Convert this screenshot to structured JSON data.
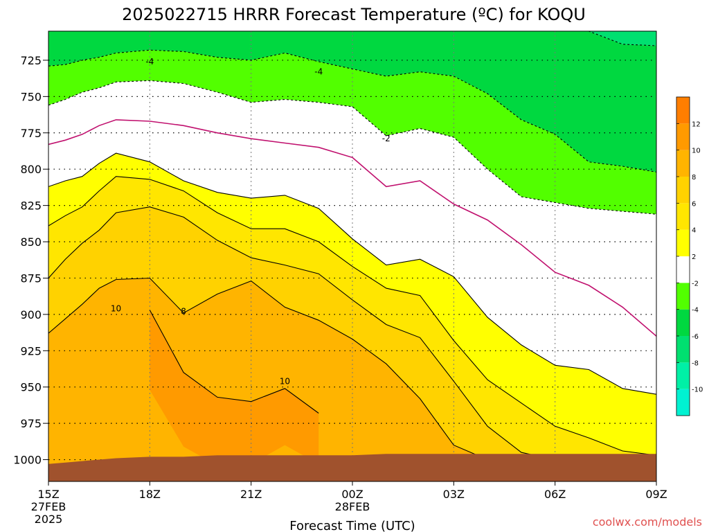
{
  "chart_data": {
    "type": "heatmap",
    "title": "2025022715 HRRR Forecast Temperature (ºC) for KOQU",
    "xlabel": "Forecast Time (UTC)",
    "ylabel": "",
    "y_axis": {
      "unit": "hPa",
      "range": [
        1015,
        705
      ],
      "inverted": true,
      "ticks": [
        "725",
        "750",
        "775",
        "800",
        "825",
        "850",
        "875",
        "900",
        "925",
        "950",
        "975",
        "1000"
      ]
    },
    "x_axis": {
      "range_hours": [
        0,
        18
      ],
      "ticks": [
        {
          "hour": 0,
          "lines": [
            "15Z",
            "27FEB",
            "2025"
          ]
        },
        {
          "hour": 3,
          "lines": [
            "18Z"
          ]
        },
        {
          "hour": 6,
          "lines": [
            "21Z"
          ]
        },
        {
          "hour": 9,
          "lines": [
            "00Z",
            "28FEB"
          ]
        },
        {
          "hour": 12,
          "lines": [
            "03Z"
          ]
        },
        {
          "hour": 15,
          "lines": [
            "06Z"
          ]
        },
        {
          "hour": 18,
          "lines": [
            "09Z"
          ]
        }
      ]
    },
    "grid": true,
    "colorbar": {
      "position": "right",
      "levels": [
        -12,
        -10,
        -8,
        -6,
        -4,
        -2,
        2,
        4,
        6,
        8,
        10,
        12,
        14
      ],
      "colors": [
        "#00f2d2",
        "#00f0a6",
        "#00e070",
        "#00d840",
        "#52ff00",
        "#ffffff",
        "#ffff00",
        "#ffe600",
        "#ffd200",
        "#ffb400",
        "#ff9a00",
        "#ff7e00"
      ],
      "tick_labels": [
        "-10",
        "-8",
        "-6",
        "-4",
        "-2",
        "2",
        "4",
        "6",
        "8",
        "10",
        "12"
      ]
    },
    "hours": [
      0,
      0.5,
      1,
      1.5,
      2,
      3,
      4,
      5,
      6,
      7,
      8,
      9,
      10,
      11,
      12,
      13,
      14,
      15,
      16,
      17,
      18
    ],
    "isotherms_hpa": [
      {
        "value": -6,
        "pressure": [
          null,
          null,
          null,
          null,
          null,
          null,
          null,
          null,
          null,
          null,
          null,
          null,
          null,
          null,
          null,
          null,
          null,
          705,
          705,
          714,
          715
        ]
      },
      {
        "value": -4,
        "pressure": [
          729,
          728,
          725,
          723,
          720,
          718,
          719,
          723,
          725,
          720,
          726,
          731,
          736,
          733,
          736,
          748,
          766,
          776,
          795,
          798,
          802
        ]
      },
      {
        "value": -2,
        "pressure": [
          756,
          752,
          747,
          744,
          740,
          739,
          741,
          747,
          754,
          752,
          754,
          757,
          777,
          772,
          778,
          800,
          819,
          823,
          827,
          829,
          831
        ]
      },
      {
        "value": 0,
        "pressure": [
          783,
          780,
          776,
          770,
          766,
          767,
          770,
          775,
          779,
          782,
          785,
          792,
          812,
          808,
          824,
          835,
          852,
          871,
          880,
          895,
          915
        ]
      },
      {
        "value": 2,
        "pressure": [
          812,
          808,
          805,
          796,
          789,
          795,
          808,
          816,
          820,
          818,
          827,
          848,
          866,
          862,
          874,
          902,
          921,
          935,
          938,
          951,
          955
        ]
      },
      {
        "value": 4,
        "pressure": [
          839,
          832,
          826,
          815,
          805,
          807,
          815,
          830,
          841,
          841,
          850,
          867,
          882,
          887,
          918,
          945,
          961,
          977,
          985,
          994,
          997
        ]
      },
      {
        "value": 6,
        "pressure": [
          875,
          862,
          851,
          842,
          830,
          826,
          833,
          849,
          861,
          866,
          872,
          890,
          907,
          916,
          946,
          977,
          995,
          1000,
          null,
          null,
          null
        ]
      },
      {
        "value": 8,
        "pressure": [
          913,
          903,
          893,
          882,
          876,
          875,
          899,
          886,
          877,
          895,
          904,
          917,
          934,
          958,
          990,
          1000,
          null,
          null,
          null,
          null,
          null
        ]
      },
      {
        "value": 10,
        "pressure": [
          null,
          null,
          null,
          null,
          null,
          897,
          940,
          957,
          960,
          951,
          968,
          null,
          null,
          null,
          null,
          null,
          null,
          null,
          null,
          null,
          null
        ]
      }
    ],
    "contour_labels": [
      {
        "text": "-4",
        "hour": 3,
        "pressure": 726
      },
      {
        "text": "-4",
        "hour": 8,
        "pressure": 733
      },
      {
        "text": "-2",
        "hour": 10,
        "pressure": 779
      },
      {
        "text": "10",
        "hour": 2,
        "pressure": 896
      },
      {
        "text": "8",
        "hour": 4,
        "pressure": 898
      },
      {
        "text": "10",
        "hour": 7,
        "pressure": 946
      }
    ],
    "surface_pressure": [
      1003,
      1002,
      1001,
      1000,
      999,
      998,
      998,
      997,
      997,
      997,
      997,
      997,
      996,
      996,
      996,
      996,
      996,
      996,
      996,
      996,
      996
    ],
    "credit": "coolwx.com/models"
  }
}
